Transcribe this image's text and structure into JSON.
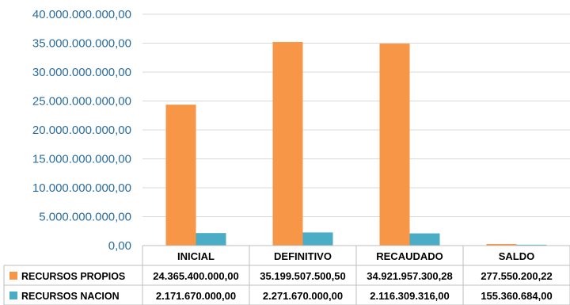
{
  "chart_data": {
    "type": "bar",
    "categories": [
      "INICIAL",
      "DEFINITIVO",
      "RECAUDADO",
      "SALDO"
    ],
    "series": [
      {
        "name": "RECURSOS PROPIOS",
        "color": "#f79646",
        "values": [
          24365400000.0,
          35199507500.5,
          34921957300.28,
          277550200.22
        ],
        "labels": [
          "24.365.400.000,00",
          "35.199.507.500,50",
          "34.921.957.300,28",
          "277.550.200,22"
        ]
      },
      {
        "name": "RECURSOS NACION",
        "color": "#4bacc6",
        "values": [
          2171670000.0,
          2271670000.0,
          2116309316.0,
          155360684.0
        ],
        "labels": [
          "2.171.670.000,00",
          "2.271.670.000,00",
          "2.116.309.316,00",
          "155.360.684,00"
        ]
      }
    ],
    "ylim": [
      0,
      40000000000
    ],
    "yticks": [
      0,
      5000000000,
      10000000000,
      15000000000,
      20000000000,
      25000000000,
      30000000000,
      35000000000,
      40000000000
    ],
    "ytick_labels": [
      "0,00",
      "5.000.000.000,00",
      "10.000.000.000,00",
      "15.000.000.000,00",
      "20.000.000.000,00",
      "25.000.000.000,00",
      "30.000.000.000,00",
      "35.000.000.000,00",
      "40.000.000.000,00"
    ],
    "grid": true,
    "legend": "data-table",
    "title": "",
    "xlabel": "",
    "ylabel": ""
  }
}
